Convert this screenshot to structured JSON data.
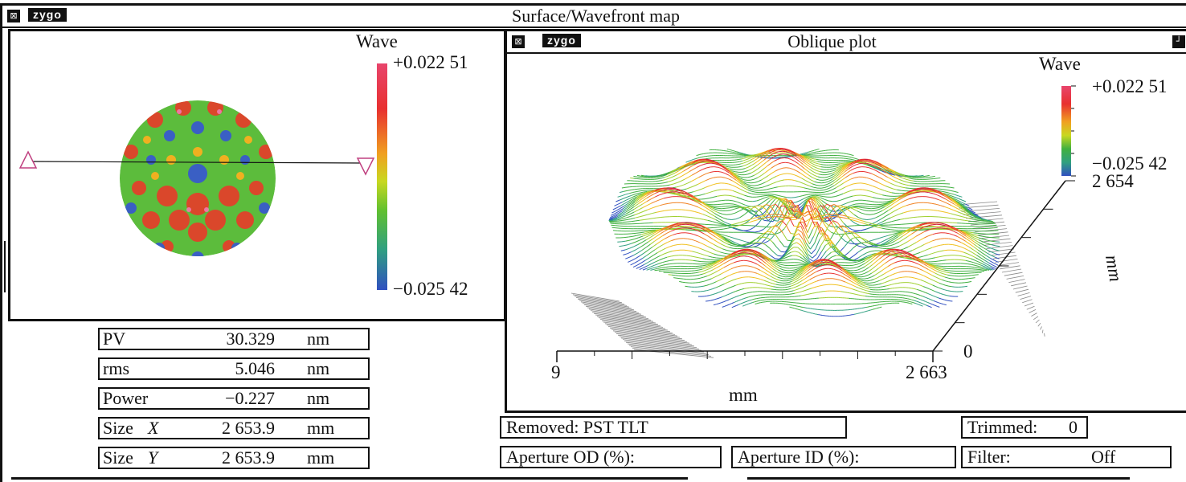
{
  "main_window": {
    "title": "Surface/Wavefront map",
    "logo": "zygo"
  },
  "surface_map": {
    "colorbar_title": "Wave",
    "max_label": "+0.022 51",
    "min_label": "−0.025 42",
    "colorbar_colors": [
      "#e8456c",
      "#e83030",
      "#f0a020",
      "#e8e020",
      "#60c030",
      "#30a050",
      "#3050c0"
    ]
  },
  "stats": {
    "rows": [
      {
        "name": "PV",
        "value": "30.329",
        "unit": "nm"
      },
      {
        "name": "rms",
        "value": "5.046",
        "unit": "nm"
      },
      {
        "name": "Power",
        "value": "−0.227",
        "unit": "nm"
      },
      {
        "name": "Size",
        "axis": "X",
        "value": "2 653.9",
        "unit": "mm"
      },
      {
        "name": "Size",
        "axis": "Y",
        "value": "2 653.9",
        "unit": "mm"
      }
    ]
  },
  "oblique": {
    "title": "Oblique plot",
    "logo": "zygo",
    "colorbar_title": "Wave",
    "max_label": "+0.022 51",
    "min_label": "−0.025 42",
    "y_axis_max": "2 654",
    "y_axis_min": "0",
    "y_axis_label": "mm",
    "x_axis_min": "9",
    "x_axis_max": "2 663",
    "x_axis_label": "mm"
  },
  "status": {
    "removed": "Removed: PST TLT",
    "trimmed_label": "Trimmed:",
    "trimmed_value": "0",
    "aperture_od": "Aperture OD (%):",
    "aperture_id": "Aperture ID (%):",
    "filter_label": "Filter:",
    "filter_value": "Off"
  }
}
